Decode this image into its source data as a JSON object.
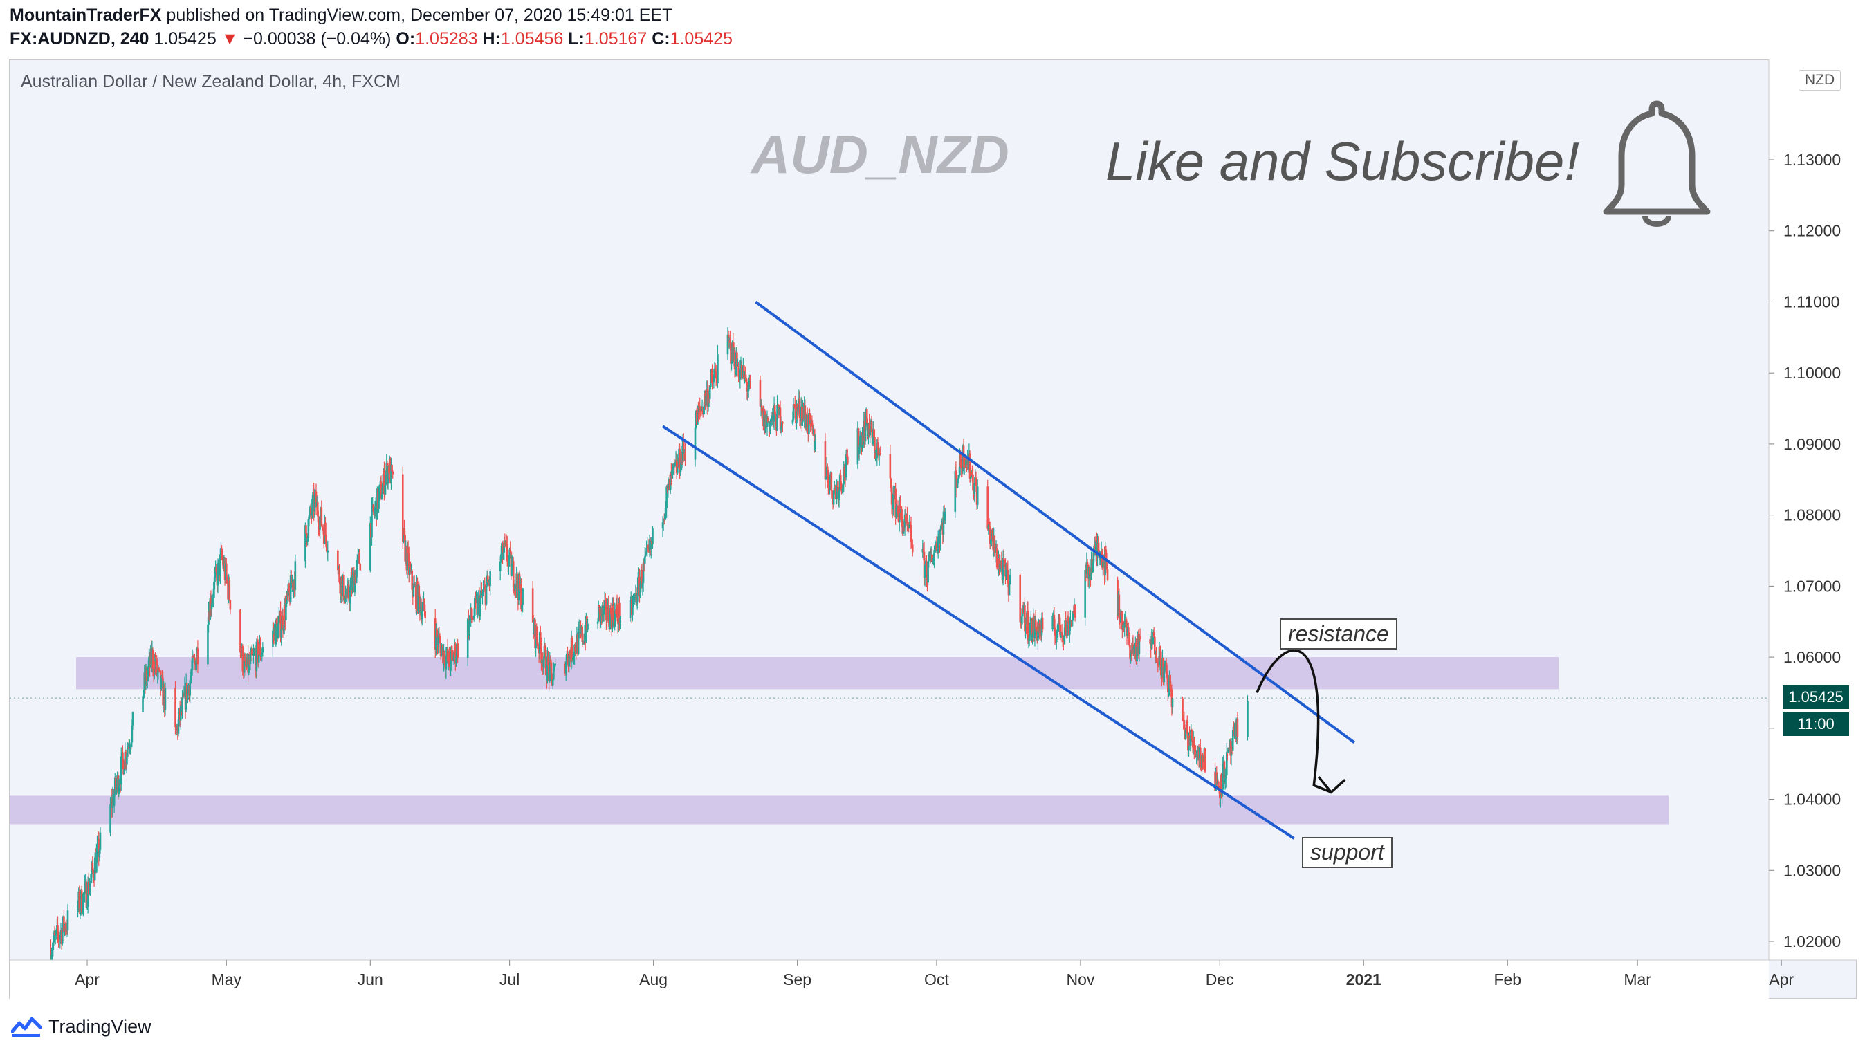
{
  "header": {
    "author": "MountainTraderFX",
    "published_text": "published on TradingView.com, December 07, 2020 15:49:01 EET",
    "symbol_line": "FX:AUDNZD, 240",
    "last": "1.05425",
    "arrow": "▼",
    "change": "−0.00038 (−0.04%)",
    "o_label": "O:",
    "o": "1.05283",
    "h_label": "H:",
    "h": "1.05456",
    "l_label": "L:",
    "l": "1.05167",
    "c_label": "C:",
    "c": "1.05425"
  },
  "legend": "Australian Dollar / New Zealand Dollar, 4h, FXCM",
  "overlay_title": "AUD_NZD",
  "cta": "Like and Subscribe!",
  "currency_button": "NZD",
  "tags": {
    "resistance": "resistance",
    "support": "support"
  },
  "price_tag": "1.05425",
  "countdown": "11:00",
  "footer_brand": "TradingView",
  "colors": {
    "up": "#26a69a",
    "down": "#ef5350",
    "zone": "#d1c4e9",
    "channel": "#1f5cd1",
    "price_badge": "#00514a",
    "overlay_text": "#b4b6bc"
  },
  "chart_data": {
    "type": "candlestick",
    "title": "Australian Dollar / New Zealand Dollar, 4h, FXCM",
    "y_ticks": [
      "1.13000",
      "1.12000",
      "1.11000",
      "1.10000",
      "1.09000",
      "1.08000",
      "1.07000",
      "1.06000",
      "1.05000",
      "1.04000",
      "1.03000",
      "1.02000"
    ],
    "ylim": [
      1.018,
      1.142
    ],
    "x_ticks": [
      "Apr",
      "May",
      "Jun",
      "Jul",
      "Aug",
      "Sep",
      "Oct",
      "Nov",
      "Dec",
      "2021",
      "Feb",
      "Mar",
      "Apr"
    ],
    "price_path": [
      {
        "date": "2020-03-24",
        "price": 1.019
      },
      {
        "date": "2020-04-01",
        "price": 1.027
      },
      {
        "date": "2020-04-15",
        "price": 1.06
      },
      {
        "date": "2020-04-20",
        "price": 1.049
      },
      {
        "date": "2020-04-30",
        "price": 1.074
      },
      {
        "date": "2020-05-05",
        "price": 1.058
      },
      {
        "date": "2020-05-13",
        "price": 1.065
      },
      {
        "date": "2020-05-20",
        "price": 1.082
      },
      {
        "date": "2020-05-27",
        "price": 1.068
      },
      {
        "date": "2020-06-05",
        "price": 1.087
      },
      {
        "date": "2020-06-10",
        "price": 1.07
      },
      {
        "date": "2020-06-18",
        "price": 1.059
      },
      {
        "date": "2020-06-30",
        "price": 1.075
      },
      {
        "date": "2020-07-10",
        "price": 1.057
      },
      {
        "date": "2020-07-20",
        "price": 1.066
      },
      {
        "date": "2020-07-27",
        "price": 1.066
      },
      {
        "date": "2020-08-05",
        "price": 1.085
      },
      {
        "date": "2020-08-17",
        "price": 1.104
      },
      {
        "date": "2020-08-25",
        "price": 1.093
      },
      {
        "date": "2020-09-02",
        "price": 1.095
      },
      {
        "date": "2020-09-09",
        "price": 1.083
      },
      {
        "date": "2020-09-16",
        "price": 1.093
      },
      {
        "date": "2020-09-23",
        "price": 1.08
      },
      {
        "date": "2020-09-29",
        "price": 1.072
      },
      {
        "date": "2020-10-07",
        "price": 1.089
      },
      {
        "date": "2020-10-14",
        "price": 1.074
      },
      {
        "date": "2020-10-21",
        "price": 1.064
      },
      {
        "date": "2020-10-29",
        "price": 1.064
      },
      {
        "date": "2020-11-05",
        "price": 1.076
      },
      {
        "date": "2020-11-12",
        "price": 1.061
      },
      {
        "date": "2020-11-17",
        "price": 1.062
      },
      {
        "date": "2020-11-23",
        "price": 1.05
      },
      {
        "date": "2020-12-01",
        "price": 1.042
      },
      {
        "date": "2020-12-07",
        "price": 1.054
      }
    ],
    "resistance_zone": [
      1.0555,
      1.06
    ],
    "support_zone": [
      1.0365,
      1.0405
    ],
    "channel_upper": [
      {
        "date": "2020-08-23",
        "price": 1.11
      },
      {
        "date": "2020-12-30",
        "price": 1.048
      }
    ],
    "channel_lower": [
      {
        "date": "2020-08-03",
        "price": 1.0925
      },
      {
        "date": "2020-12-17",
        "price": 1.0345
      }
    ],
    "projection": [
      {
        "date": "2020-12-09",
        "price": 1.055
      },
      {
        "date": "2020-12-25",
        "price": 1.041
      }
    ],
    "last_price": 1.05425
  }
}
